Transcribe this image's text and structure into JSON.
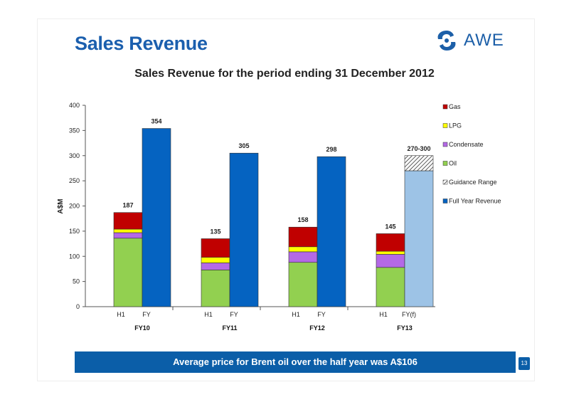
{
  "slide": {
    "title": "Sales Revenue",
    "logo_text": "AWE",
    "logo_icon": "awe-swirl-logo-icon",
    "footer_text": "Average price for Brent oil over the half year was A$106",
    "page_number": "13"
  },
  "colors": {
    "title_blue": "#1b5fae",
    "oil": "#92d050",
    "condensate": "#b469e6",
    "lpg": "#ffff00",
    "gas": "#c00000",
    "full_year": "#0563c1",
    "forecast_full_year": "#9dc3e6",
    "footer_blue": "#0b5ea8"
  },
  "chart_data": {
    "type": "bar",
    "title": "Sales Revenue for the period ending 31 December 2012",
    "ylabel": "A$M",
    "ylim": [
      0,
      400
    ],
    "yticks": [
      0,
      50,
      100,
      150,
      200,
      250,
      300,
      350,
      400
    ],
    "grid": false,
    "legend_position": "right",
    "legend": [
      "Gas",
      "LPG",
      "Condensate",
      "Oil",
      "Guidance Range",
      "Full Year Revenue"
    ],
    "groups": [
      {
        "label": "FY10",
        "h1": {
          "label": "H1",
          "total": "187",
          "oil": 136,
          "condensate": 11,
          "lpg": 7,
          "gas": 33
        },
        "fy": {
          "label": "FY",
          "value": 354,
          "value_label": "354",
          "forecast": false
        }
      },
      {
        "label": "FY11",
        "h1": {
          "label": "H1",
          "total": "135",
          "oil": 73,
          "condensate": 14,
          "lpg": 11,
          "gas": 37
        },
        "fy": {
          "label": "FY",
          "value": 305,
          "value_label": "305",
          "forecast": false
        }
      },
      {
        "label": "FY12",
        "h1": {
          "label": "H1",
          "total": "158",
          "oil": 88,
          "condensate": 21,
          "lpg": 10,
          "gas": 39
        },
        "fy": {
          "label": "FY",
          "value": 298,
          "value_label": "298",
          "forecast": false
        }
      },
      {
        "label": "FY13",
        "h1": {
          "label": "H1",
          "total": "145",
          "oil": 78,
          "condensate": 26,
          "lpg": 6,
          "gas": 35
        },
        "fy": {
          "label": "FY(f)",
          "value": 270,
          "guidance_high": 300,
          "value_label": "270-300",
          "forecast": true
        }
      }
    ]
  }
}
